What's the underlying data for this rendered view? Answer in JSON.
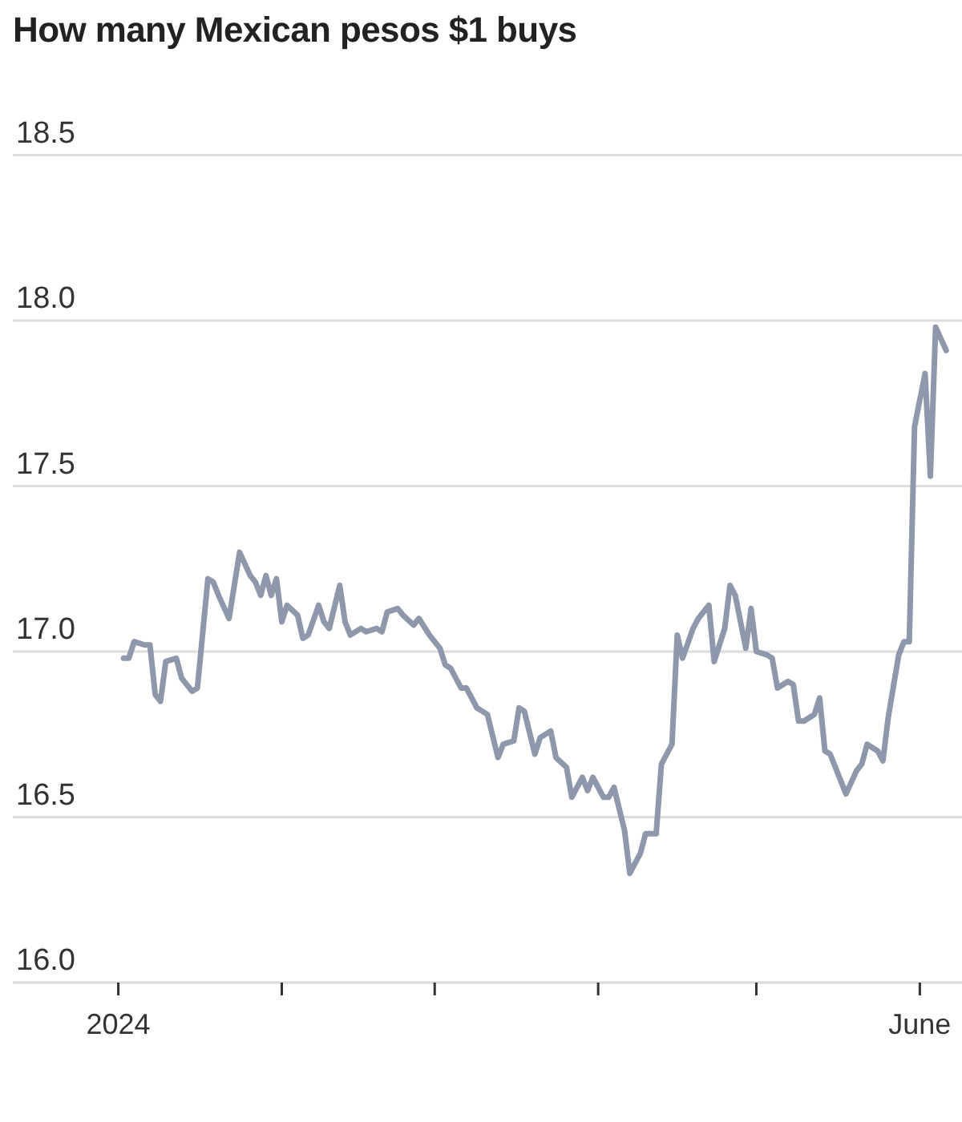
{
  "chart_data": {
    "type": "line",
    "title": "How many Mexican pesos $1 buys",
    "x": [
      "2024-01-02",
      "2024-01-03",
      "2024-01-04",
      "2024-01-06",
      "2024-01-07",
      "2024-01-08",
      "2024-01-09",
      "2024-01-10",
      "2024-01-12",
      "2024-01-13",
      "2024-01-15",
      "2024-01-16",
      "2024-01-18",
      "2024-01-19",
      "2024-01-20",
      "2024-01-22",
      "2024-01-24",
      "2024-01-26",
      "2024-01-27",
      "2024-01-28",
      "2024-01-29",
      "2024-01-30",
      "2024-01-31",
      "2024-02-01",
      "2024-02-02",
      "2024-02-04",
      "2024-02-05",
      "2024-02-06",
      "2024-02-08",
      "2024-02-09",
      "2024-02-10",
      "2024-02-12",
      "2024-02-13",
      "2024-02-14",
      "2024-02-16",
      "2024-02-17",
      "2024-02-19",
      "2024-02-20",
      "2024-02-21",
      "2024-02-23",
      "2024-02-24",
      "2024-02-26",
      "2024-02-27",
      "2024-02-29",
      "2024-03-02",
      "2024-03-03",
      "2024-03-04",
      "2024-03-06",
      "2024-03-07",
      "2024-03-09",
      "2024-03-10",
      "2024-03-11",
      "2024-03-13",
      "2024-03-14",
      "2024-03-16",
      "2024-03-17",
      "2024-03-18",
      "2024-03-20",
      "2024-03-21",
      "2024-03-23",
      "2024-03-24",
      "2024-03-26",
      "2024-03-27",
      "2024-03-29",
      "2024-03-30",
      "2024-03-31",
      "2024-04-02",
      "2024-04-03",
      "2024-04-04",
      "2024-04-06",
      "2024-04-07",
      "2024-04-09",
      "2024-04-10",
      "2024-04-12",
      "2024-04-13",
      "2024-04-15",
      "2024-04-16",
      "2024-04-17",
      "2024-04-19",
      "2024-04-20",
      "2024-04-22",
      "2024-04-23",
      "2024-04-25",
      "2024-04-26",
      "2024-04-27",
      "2024-04-29",
      "2024-04-30",
      "2024-05-01",
      "2024-05-03",
      "2024-05-04",
      "2024-05-05",
      "2024-05-07",
      "2024-05-08",
      "2024-05-09",
      "2024-05-10",
      "2024-05-12",
      "2024-05-13",
      "2024-05-14",
      "2024-05-15",
      "2024-05-17",
      "2024-05-18",
      "2024-05-20",
      "2024-05-21",
      "2024-05-22",
      "2024-05-24",
      "2024-05-25",
      "2024-05-26",
      "2024-05-28",
      "2024-05-29",
      "2024-05-30",
      "2024-05-31",
      "2024-06-02",
      "2024-06-03",
      "2024-06-04",
      "2024-06-06"
    ],
    "values": [
      16.98,
      16.98,
      17.03,
      17.02,
      17.02,
      16.87,
      16.85,
      16.97,
      16.98,
      16.92,
      16.88,
      16.89,
      17.22,
      17.21,
      17.17,
      17.1,
      17.3,
      17.23,
      17.21,
      17.17,
      17.23,
      17.17,
      17.22,
      17.09,
      17.14,
      17.11,
      17.04,
      17.05,
      17.14,
      17.09,
      17.07,
      17.2,
      17.09,
      17.05,
      17.07,
      17.06,
      17.07,
      17.06,
      17.12,
      17.13,
      17.11,
      17.08,
      17.1,
      17.05,
      17.01,
      16.96,
      16.95,
      16.89,
      16.89,
      16.83,
      16.82,
      16.81,
      16.68,
      16.72,
      16.73,
      16.83,
      16.82,
      16.69,
      16.74,
      16.76,
      16.68,
      16.65,
      16.56,
      16.62,
      16.58,
      16.62,
      16.56,
      16.56,
      16.59,
      16.46,
      16.33,
      16.39,
      16.45,
      16.45,
      16.66,
      16.72,
      17.05,
      16.98,
      17.07,
      17.1,
      17.14,
      16.97,
      17.07,
      17.2,
      17.17,
      17.01,
      17.13,
      17.0,
      16.99,
      16.98,
      16.89,
      16.91,
      16.9,
      16.79,
      16.79,
      16.81,
      16.86,
      16.7,
      16.69,
      16.61,
      16.57,
      16.64,
      16.66,
      16.72,
      16.7,
      16.67,
      16.8,
      16.99,
      17.03,
      17.03,
      17.68,
      17.84,
      17.53,
      17.98,
      17.91
    ],
    "color": "#8f97aa",
    "xlim": [
      "2023-12-12",
      "2024-06-09"
    ],
    "xticks": [
      {
        "value": "2024-01-01",
        "label": "2024"
      },
      {
        "value": "2024-02-01",
        "label": null
      },
      {
        "value": "2024-03-01",
        "label": null
      },
      {
        "value": "2024-04-01",
        "label": null
      },
      {
        "value": "2024-05-01",
        "label": null
      },
      {
        "value": "2024-06-01",
        "label": "June"
      }
    ],
    "ylim": [
      16,
      18.93
    ],
    "yticks": [
      {
        "value": 16,
        "label": "16.0"
      },
      16.5,
      {
        "value": 17,
        "label": "17.0"
      },
      17.5,
      {
        "value": 18,
        "label": "18.0"
      },
      18.5
    ],
    "grid": "y"
  }
}
